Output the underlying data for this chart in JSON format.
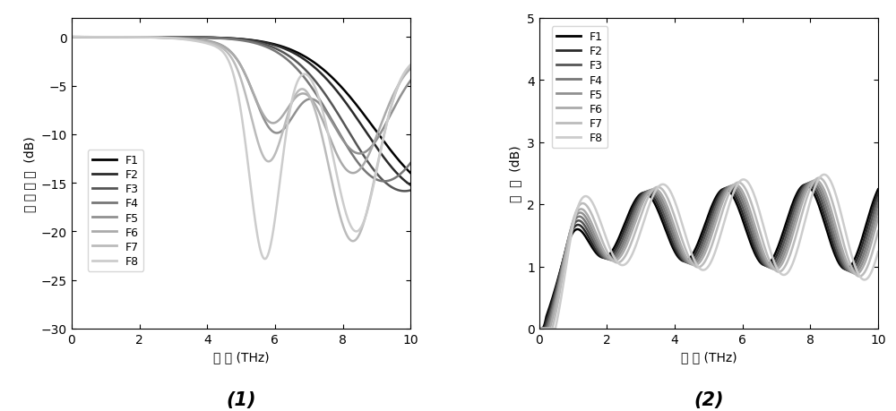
{
  "fig_width": 10.0,
  "fig_height": 4.6,
  "dpi": 100,
  "plot1": {
    "xlabel": "频 率 (THz)",
    "ylabel": "回 波 损 耗  (dB)",
    "xlim": [
      0,
      10
    ],
    "ylim": [
      -30,
      2
    ],
    "yticks": [
      0,
      -5,
      -10,
      -15,
      -20,
      -25,
      -30
    ],
    "xticks": [
      0,
      2,
      4,
      6,
      8,
      10
    ],
    "label": "(1)"
  },
  "plot2": {
    "xlabel": "频 率 (THz)",
    "ylabel": "增  益  (dB)",
    "xlim": [
      0,
      10
    ],
    "ylim": [
      0,
      5
    ],
    "yticks": [
      0,
      1,
      2,
      3,
      4,
      5
    ],
    "xticks": [
      0,
      2,
      4,
      6,
      8,
      10
    ],
    "label": "(2)"
  },
  "series_names": [
    "F1",
    "F2",
    "F3",
    "F4",
    "F5",
    "F6",
    "F7",
    "F8"
  ],
  "colors": [
    "#000000",
    "#2a2a2a",
    "#555555",
    "#777777",
    "#909090",
    "#aaaaaa",
    "#bbbbbb",
    "#cccccc"
  ],
  "linewidths": [
    1.8,
    1.8,
    1.8,
    1.8,
    1.8,
    1.8,
    1.8,
    1.8
  ]
}
